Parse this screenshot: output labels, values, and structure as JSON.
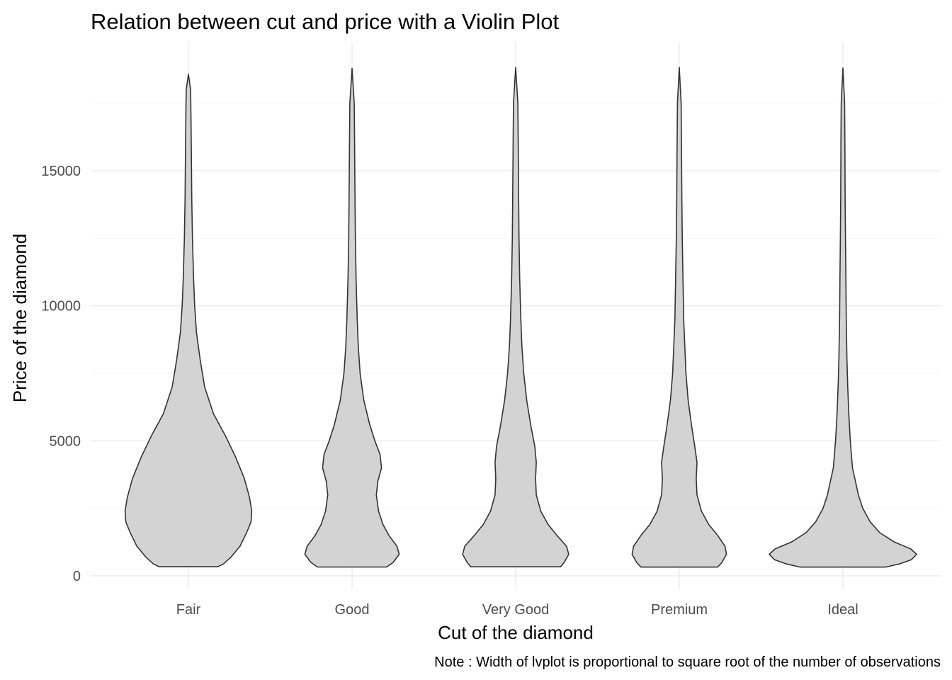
{
  "chart_data": {
    "type": "violin",
    "title": "Relation between cut and price with a Violin Plot",
    "xlabel": "Cut of the diamond",
    "ylabel": "Price of the diamond",
    "caption": "Note : Width of lvplot is proportional to square root of the number of observations",
    "categories": [
      "Fair",
      "Good",
      "Very Good",
      "Premium",
      "Ideal"
    ],
    "yticks": [
      0,
      5000,
      10000,
      15000
    ],
    "ylim": [
      -500,
      19500
    ],
    "grid": true,
    "fill_color": "#d3d3d3",
    "outline_color": "#333333",
    "series": [
      {
        "category": "Fair",
        "min": 337,
        "max": 18574,
        "profile": [
          [
            337,
            0.4
          ],
          [
            450,
            0.48
          ],
          [
            700,
            0.58
          ],
          [
            1100,
            0.7
          ],
          [
            1600,
            0.79
          ],
          [
            2000,
            0.85
          ],
          [
            2400,
            0.86
          ],
          [
            2900,
            0.83
          ],
          [
            3600,
            0.76
          ],
          [
            4400,
            0.64
          ],
          [
            5200,
            0.5
          ],
          [
            6000,
            0.34
          ],
          [
            7000,
            0.22
          ],
          [
            8000,
            0.16
          ],
          [
            9000,
            0.11
          ],
          [
            10000,
            0.085
          ],
          [
            11000,
            0.07
          ],
          [
            12500,
            0.055
          ],
          [
            14000,
            0.045
          ],
          [
            15500,
            0.04
          ],
          [
            17000,
            0.035
          ],
          [
            18000,
            0.03
          ],
          [
            18574,
            0.0
          ]
        ]
      },
      {
        "category": "Good",
        "min": 327,
        "max": 18788,
        "profile": [
          [
            327,
            0.47
          ],
          [
            500,
            0.56
          ],
          [
            800,
            0.64
          ],
          [
            1100,
            0.61
          ],
          [
            1500,
            0.5
          ],
          [
            1900,
            0.42
          ],
          [
            2400,
            0.36
          ],
          [
            3000,
            0.33
          ],
          [
            3500,
            0.35
          ],
          [
            4000,
            0.4
          ],
          [
            4500,
            0.38
          ],
          [
            5000,
            0.31
          ],
          [
            5600,
            0.24
          ],
          [
            6500,
            0.16
          ],
          [
            7500,
            0.11
          ],
          [
            8500,
            0.085
          ],
          [
            9500,
            0.07
          ],
          [
            11000,
            0.055
          ],
          [
            12500,
            0.045
          ],
          [
            14000,
            0.04
          ],
          [
            16000,
            0.035
          ],
          [
            17500,
            0.03
          ],
          [
            18788,
            0.0
          ]
        ]
      },
      {
        "category": "Very Good",
        "min": 336,
        "max": 18818,
        "profile": [
          [
            336,
            0.61
          ],
          [
            500,
            0.66
          ],
          [
            800,
            0.72
          ],
          [
            1100,
            0.69
          ],
          [
            1500,
            0.56
          ],
          [
            1900,
            0.44
          ],
          [
            2400,
            0.34
          ],
          [
            3000,
            0.28
          ],
          [
            3600,
            0.27
          ],
          [
            4200,
            0.28
          ],
          [
            4800,
            0.26
          ],
          [
            5500,
            0.21
          ],
          [
            6500,
            0.15
          ],
          [
            7500,
            0.11
          ],
          [
            8500,
            0.085
          ],
          [
            9500,
            0.07
          ],
          [
            11000,
            0.055
          ],
          [
            12500,
            0.045
          ],
          [
            14000,
            0.04
          ],
          [
            16000,
            0.035
          ],
          [
            17500,
            0.03
          ],
          [
            18818,
            0.0
          ]
        ]
      },
      {
        "category": "Premium",
        "min": 326,
        "max": 18823,
        "profile": [
          [
            326,
            0.52
          ],
          [
            500,
            0.58
          ],
          [
            800,
            0.64
          ],
          [
            1100,
            0.62
          ],
          [
            1500,
            0.52
          ],
          [
            1900,
            0.4
          ],
          [
            2400,
            0.3
          ],
          [
            3000,
            0.24
          ],
          [
            3600,
            0.23
          ],
          [
            4200,
            0.24
          ],
          [
            4800,
            0.21
          ],
          [
            5500,
            0.17
          ],
          [
            6500,
            0.12
          ],
          [
            7500,
            0.09
          ],
          [
            8500,
            0.075
          ],
          [
            9500,
            0.06
          ],
          [
            11000,
            0.05
          ],
          [
            12500,
            0.04
          ],
          [
            14000,
            0.035
          ],
          [
            16000,
            0.03
          ],
          [
            17500,
            0.025
          ],
          [
            18823,
            0.0
          ]
        ]
      },
      {
        "category": "Ideal",
        "min": 326,
        "max": 18806,
        "profile": [
          [
            326,
            0.58
          ],
          [
            450,
            0.78
          ],
          [
            600,
            0.93
          ],
          [
            800,
            1.0
          ],
          [
            1000,
            0.92
          ],
          [
            1250,
            0.7
          ],
          [
            1600,
            0.5
          ],
          [
            2000,
            0.37
          ],
          [
            2500,
            0.27
          ],
          [
            3000,
            0.21
          ],
          [
            3500,
            0.17
          ],
          [
            4000,
            0.13
          ],
          [
            5000,
            0.1
          ],
          [
            6000,
            0.08
          ],
          [
            7000,
            0.065
          ],
          [
            8000,
            0.055
          ],
          [
            9500,
            0.045
          ],
          [
            11000,
            0.04
          ],
          [
            12500,
            0.035
          ],
          [
            14000,
            0.03
          ],
          [
            16000,
            0.027
          ],
          [
            17500,
            0.023
          ],
          [
            18806,
            0.0
          ]
        ]
      }
    ]
  }
}
